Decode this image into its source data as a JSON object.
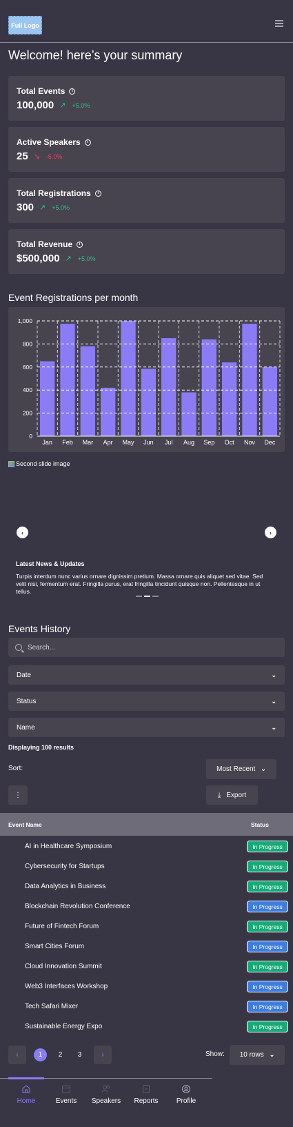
{
  "header": {
    "logo": "Full Logo",
    "menu_icon": "hamburger-menu-icon"
  },
  "welcome": "Welcome! here’s your summary",
  "stats": [
    {
      "title": "Total Events",
      "value": "100,000",
      "trend": "+5.0%",
      "direction": "up"
    },
    {
      "title": "Active Speakers",
      "value": "25",
      "trend": "-5.0%",
      "direction": "down"
    },
    {
      "title": "Total Registrations",
      "value": "300",
      "trend": "+5.0%",
      "direction": "up"
    },
    {
      "title": "Total Revenue",
      "value": "$500,000",
      "trend": "+5.0%",
      "direction": "up"
    }
  ],
  "colors": {
    "accent": "#8b7cf6",
    "up": "#2fbf85",
    "down": "#e2455e",
    "badge_green": "#18a978",
    "badge_blue": "#3d7ce0"
  },
  "chart_section_title": "Event Registrations per month",
  "chart_data": {
    "type": "bar",
    "categories": [
      "Jan",
      "Feb",
      "Mar",
      "Apr",
      "May",
      "Jun",
      "Jul",
      "Aug",
      "Sep",
      "Oct",
      "Nov",
      "Dec"
    ],
    "values": [
      650,
      975,
      780,
      420,
      1000,
      585,
      850,
      380,
      840,
      640,
      975,
      600
    ],
    "yticks": [
      "0",
      "200",
      "400",
      "600",
      "800",
      "1,000"
    ],
    "ylim": [
      0,
      1000
    ],
    "grid": true
  },
  "carousel": {
    "image_alt": "Second slide image",
    "prev_icon": "chevron-left-icon",
    "next_icon": "chevron-right-icon",
    "title": "Latest News & Updates",
    "body": "Turpis interdum nunc varius ornare dignissim pretium. Massa ornare quis aliquet sed vitae. Sed velit nisi, fermentum erat. Fringilla purus, erat fringilla tincidunt quisque non. Pellentesque in ut tellus."
  },
  "history": {
    "title": "Events History",
    "search_placeholder": "Search...",
    "filters": [
      "Date",
      "Status",
      "Name"
    ],
    "results_text": "Displaying 100 results",
    "sort_label": "Sort:",
    "sort_value": "Most Recent",
    "export_label": "Export",
    "columns": [
      "Event Name",
      "Status"
    ],
    "rows": [
      {
        "name": "AI in Healthcare Symposium",
        "status": "In Progress",
        "color": "green"
      },
      {
        "name": "Cybersecurity for Startups",
        "status": "In Progress",
        "color": "green"
      },
      {
        "name": "Data Analytics in Business",
        "status": "In Progress",
        "color": "green"
      },
      {
        "name": "Blockchain Revolution Conference",
        "status": "In Progress",
        "color": "blue"
      },
      {
        "name": "Future of Fintech Forum",
        "status": "In Progress",
        "color": "green"
      },
      {
        "name": "Smart Cities Forum",
        "status": "In Progress",
        "color": "blue"
      },
      {
        "name": "Cloud Innovation Summit",
        "status": "In Progress",
        "color": "green"
      },
      {
        "name": "Web3 Interfaces Workshop",
        "status": "In Progress",
        "color": "blue"
      },
      {
        "name": "Tech Safari Mixer",
        "status": "In Progress",
        "color": "blue"
      },
      {
        "name": "Sustainable Energy Expo",
        "status": "In Progress",
        "color": "green"
      }
    ],
    "pages": [
      "1",
      "2",
      "3"
    ],
    "show_label": "Show:",
    "rows_value": "10 rows"
  },
  "bottom_nav": [
    {
      "label": "Home",
      "icon": "home-icon",
      "active": true
    },
    {
      "label": "Events",
      "icon": "calendar-icon",
      "active": false
    },
    {
      "label": "Speakers",
      "icon": "speakers-icon",
      "active": false
    },
    {
      "label": "Reports",
      "icon": "reports-icon",
      "active": false
    },
    {
      "label": "Profile",
      "icon": "profile-icon",
      "active": false
    }
  ]
}
